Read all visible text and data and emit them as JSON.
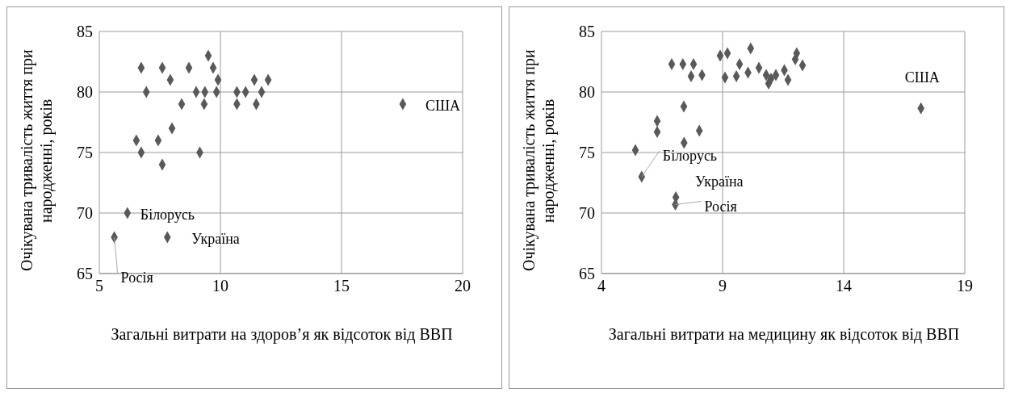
{
  "chart_data": [
    {
      "type": "scatter",
      "ylabel": "Очікувана тривалість життя при народженні, років",
      "xlabel": "Загальні витрати на здоров’я як відсоток від ВВП",
      "marker": "diamond",
      "grid": true,
      "xlim": [
        5,
        20
      ],
      "xticks": [
        5,
        10,
        15,
        20
      ],
      "ylim": [
        65,
        85
      ],
      "yticks": [
        65,
        70,
        75,
        80,
        85
      ],
      "series": [
        {
          "color": "#595959",
          "x": [
            6.73,
            7.6,
            7.93,
            6.94,
            8.7,
            9.5,
            9.7,
            9.9,
            9.0,
            9.36,
            9.84,
            8.4,
            9.33,
            10.68,
            11.04,
            11.4,
            11.97,
            11.7,
            10.68,
            11.48,
            8.0,
            6.53,
            7.43,
            6.73,
            9.15,
            7.6,
            6.16,
            5.62,
            7.81,
            17.53
          ],
          "values": [
            82,
            82,
            81,
            80,
            82,
            83,
            82,
            81,
            80,
            80,
            80,
            79,
            79,
            80,
            80,
            81,
            81,
            80,
            79,
            79,
            77,
            76,
            76,
            75,
            75,
            74,
            70,
            68,
            68,
            79
          ]
        }
      ],
      "annotations": [
        {
          "text": "США",
          "x": 17.53,
          "y": 79
        },
        {
          "text": "Білорусь",
          "x": 6.16,
          "y": 70
        },
        {
          "text": "Україна",
          "x": 7.81,
          "y": 68
        },
        {
          "text": "Росія",
          "x": 5.62,
          "y": 68
        }
      ]
    },
    {
      "type": "scatter",
      "ylabel": "Очікувана тривалість життя при народженні, років",
      "xlabel": "Загальні витрати на медицину  як відсоток від ВВП",
      "marker": "diamond",
      "grid": true,
      "xlim": [
        4,
        19
      ],
      "xticks": [
        4,
        9,
        14,
        19
      ],
      "ylim": [
        65,
        85
      ],
      "yticks": [
        65,
        70,
        75,
        80,
        85
      ],
      "series": [
        {
          "color": "#595959",
          "x": [
            6.9,
            7.36,
            7.8,
            7.7,
            8.15,
            8.9,
            9.2,
            9.7,
            9.1,
            9.57,
            10.16,
            10.5,
            10.8,
            11.0,
            11.2,
            11.55,
            11.7,
            12.0,
            12.06,
            12.3,
            10.9,
            10.05,
            7.4,
            6.3,
            6.3,
            8.04,
            7.41,
            5.4,
            5.66,
            7.07,
            7.05,
            17.19
          ],
          "values": [
            82.3,
            82.3,
            82.3,
            81.3,
            81.4,
            83.0,
            83.2,
            82.3,
            81.2,
            81.3,
            83.6,
            82.0,
            81.4,
            81.1,
            81.4,
            81.8,
            81.0,
            82.7,
            83.2,
            82.2,
            80.7,
            81.6,
            78.8,
            77.6,
            76.7,
            76.8,
            75.8,
            75.2,
            73.0,
            71.3,
            70.7,
            78.65
          ]
        }
      ],
      "annotations": [
        {
          "text": "США",
          "x": 17.19,
          "y": 78.65
        },
        {
          "text": "Білорусь",
          "x": 5.66,
          "y": 73.0
        },
        {
          "text": "Україна",
          "x": 7.07,
          "y": 71.3
        },
        {
          "text": "Росія",
          "x": 7.05,
          "y": 70.7
        }
      ]
    }
  ]
}
